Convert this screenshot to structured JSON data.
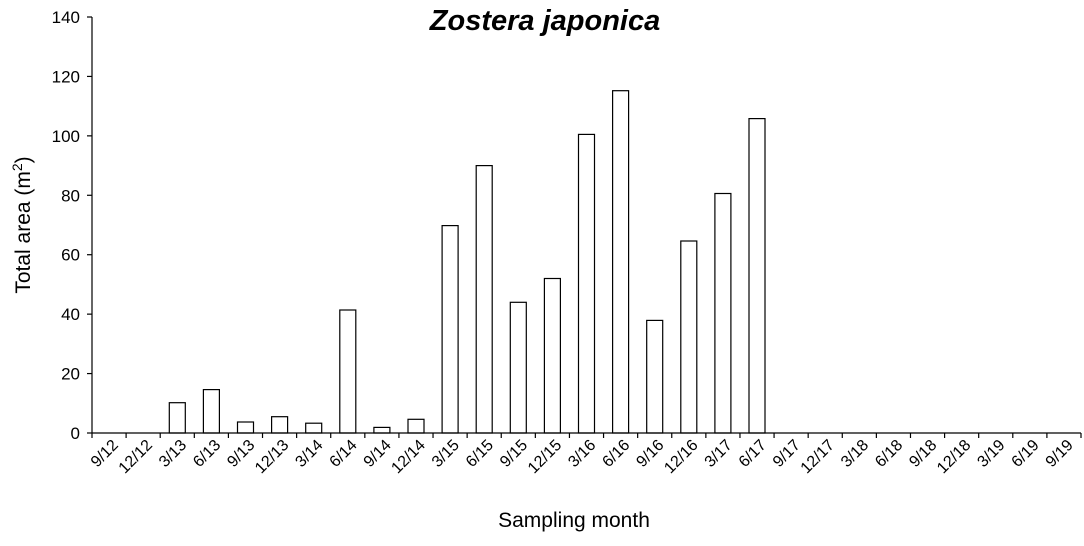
{
  "chart_data": {
    "type": "bar",
    "title": "Zostera japonica",
    "xlabel": "Sampling month",
    "ylabel": "Total area (m",
    "ylabel_sup": "2",
    "ylabel_close": ")",
    "ylim": [
      0,
      140
    ],
    "yticks": [
      "0",
      "20",
      "40",
      "60",
      "80",
      "100",
      "120",
      "140"
    ],
    "grid": false,
    "legend": "none",
    "categories": [
      "9/12",
      "12/12",
      "3/13",
      "6/13",
      "9/13",
      "12/13",
      "3/14",
      "6/14",
      "9/14",
      "12/14",
      "3/15",
      "6/15",
      "9/15",
      "12/15",
      "3/16",
      "6/16",
      "9/16",
      "12/16",
      "3/17",
      "6/17",
      "9/17",
      "12/17",
      "3/18",
      "6/18",
      "9/18",
      "12/18",
      "3/19",
      "6/19",
      "9/19"
    ],
    "values": [
      0,
      0,
      10.2,
      14.6,
      3.7,
      5.5,
      3.3,
      41.4,
      1.9,
      4.6,
      69.8,
      90,
      44,
      52,
      100.5,
      115.2,
      37.9,
      64.6,
      80.6,
      105.8,
      0,
      0,
      0,
      0,
      0,
      0,
      0,
      0,
      0
    ],
    "bar_fill": "#ffffff",
    "bar_stroke": "#000000"
  }
}
